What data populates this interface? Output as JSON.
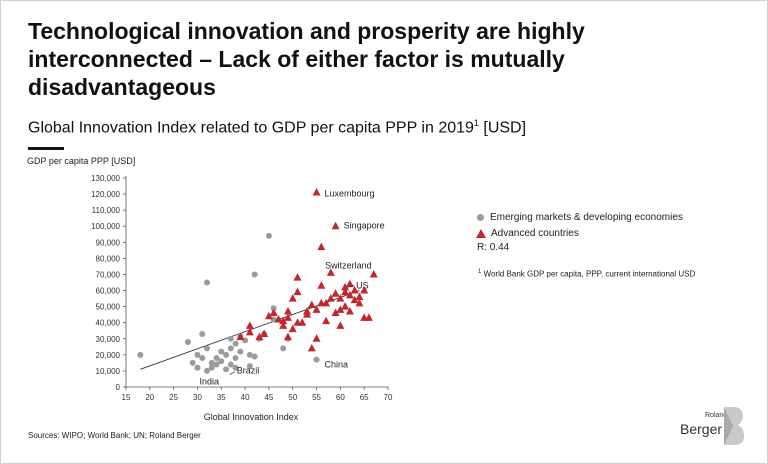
{
  "title": "Technological innovation and prosperity are highly interconnected – Lack of either factor is mutually disadvantageous",
  "subtitle": "Global Innovation Index related to GDP per capita PPP in 2019",
  "subtitle_sup": "1",
  "subtitle_unit": " [USD]",
  "sources": "Sources: WIPO; World Bank; UN; Roland Berger",
  "footnote_sup": "1",
  "footnote": " World Bank GDP per capita, PPP, current international USD",
  "logo": {
    "small": "Roland",
    "big": "Berger"
  },
  "colors": {
    "emerging": "#9b9b9b",
    "advanced": "#c0282d",
    "trend": "#333333"
  },
  "chart_data": {
    "type": "scatter",
    "ylabel": "GDP per capita PPP [USD]",
    "xlabel": "Global Innovation Index",
    "xlim": [
      15,
      70
    ],
    "ylim": [
      0,
      130000
    ],
    "xticks": [
      15,
      20,
      25,
      30,
      35,
      40,
      45,
      50,
      55,
      60,
      65,
      70
    ],
    "yticks": [
      0,
      10000,
      20000,
      30000,
      40000,
      50000,
      60000,
      70000,
      80000,
      90000,
      100000,
      110000,
      120000,
      130000
    ],
    "ytick_labels": [
      "0",
      "10,000",
      "20,000",
      "30,000",
      "40,000",
      "50,000",
      "60,000",
      "70,000",
      "80,000",
      "90,000",
      "100,000",
      "110,000",
      "120,000",
      "130,000"
    ],
    "legend": {
      "emerging": "Emerging markets & developing economies",
      "advanced": "Advanced countries",
      "r": "R: 0.44"
    },
    "trendline": {
      "x": [
        18,
        64
      ],
      "y": [
        11000,
        60000
      ]
    },
    "series": [
      {
        "name": "Emerging markets & developing economies",
        "marker": "circle",
        "points": [
          [
            18,
            20000
          ],
          [
            28,
            28000
          ],
          [
            29,
            15000
          ],
          [
            30,
            12000
          ],
          [
            30,
            20000
          ],
          [
            31,
            18000
          ],
          [
            31,
            33000
          ],
          [
            32,
            24000
          ],
          [
            32,
            10000
          ],
          [
            32,
            65000
          ],
          [
            33,
            15000
          ],
          [
            33,
            12000
          ],
          [
            34,
            14000
          ],
          [
            34,
            18000
          ],
          [
            35,
            22000
          ],
          [
            35,
            16000
          ],
          [
            36,
            20000
          ],
          [
            36,
            11000
          ],
          [
            37,
            24000
          ],
          [
            37,
            14000
          ],
          [
            37,
            30000
          ],
          [
            38,
            18000
          ],
          [
            38,
            27000
          ],
          [
            38,
            12000
          ],
          [
            39,
            22000
          ],
          [
            39,
            32000
          ],
          [
            40,
            29000
          ],
          [
            41,
            13000
          ],
          [
            41,
            20000
          ],
          [
            42,
            19000
          ],
          [
            42,
            70000
          ],
          [
            43,
            30000
          ],
          [
            44,
            33000
          ],
          [
            45,
            94000
          ],
          [
            46,
            42000
          ],
          [
            46,
            49000
          ],
          [
            48,
            24000
          ],
          [
            49,
            30000
          ],
          [
            55,
            17000
          ]
        ]
      },
      {
        "name": "Advanced countries",
        "marker": "triangle",
        "points": [
          [
            39,
            31000
          ],
          [
            41,
            38000
          ],
          [
            41,
            34000
          ],
          [
            43,
            31000
          ],
          [
            44,
            33000
          ],
          [
            45,
            44000
          ],
          [
            46,
            46000
          ],
          [
            47,
            42000
          ],
          [
            48,
            41000
          ],
          [
            48,
            38000
          ],
          [
            49,
            47000
          ],
          [
            49,
            43000
          ],
          [
            49,
            31000
          ],
          [
            50,
            55000
          ],
          [
            50,
            36000
          ],
          [
            51,
            40000
          ],
          [
            51,
            59000
          ],
          [
            51,
            68000
          ],
          [
            52,
            40000
          ],
          [
            53,
            45000
          ],
          [
            53,
            47000
          ],
          [
            54,
            51000
          ],
          [
            54,
            24000
          ],
          [
            55,
            48000
          ],
          [
            55,
            30000
          ],
          [
            56,
            52000
          ],
          [
            56,
            63000
          ],
          [
            56,
            87000
          ],
          [
            57,
            41000
          ],
          [
            57,
            52000
          ],
          [
            58,
            55000
          ],
          [
            58,
            71000
          ],
          [
            59,
            46000
          ],
          [
            59,
            58000
          ],
          [
            60,
            48000
          ],
          [
            60,
            55000
          ],
          [
            60,
            38000
          ],
          [
            61,
            50000
          ],
          [
            61,
            62000
          ],
          [
            62,
            57000
          ],
          [
            62,
            47000
          ],
          [
            63,
            60000
          ],
          [
            63,
            54000
          ],
          [
            64,
            56000
          ],
          [
            64,
            52000
          ],
          [
            65,
            60000
          ],
          [
            65,
            43000
          ],
          [
            66,
            43000
          ],
          [
            61,
            59000
          ],
          [
            62,
            64000
          ],
          [
            59,
            100000
          ],
          [
            55,
            121000
          ],
          [
            67,
            70000
          ]
        ]
      }
    ],
    "annotations": [
      {
        "label": "Luxembourg",
        "x": 55,
        "y": 121000,
        "anchor": "right"
      },
      {
        "label": "Singapore",
        "x": 59,
        "y": 101000,
        "anchor": "right"
      },
      {
        "label": "Switzerland",
        "x": 67,
        "y": 70000,
        "anchor": "above-left"
      },
      {
        "label": "US",
        "x": 61,
        "y": 62000,
        "anchor": "right-arrow"
      },
      {
        "label": "China",
        "x": 55,
        "y": 17000,
        "anchor": "right-below"
      },
      {
        "label": "Brazil",
        "x": 37,
        "y": 9000,
        "anchor": "right-line"
      },
      {
        "label": "India",
        "x": 36,
        "y": 9000,
        "anchor": "left-below"
      }
    ]
  }
}
